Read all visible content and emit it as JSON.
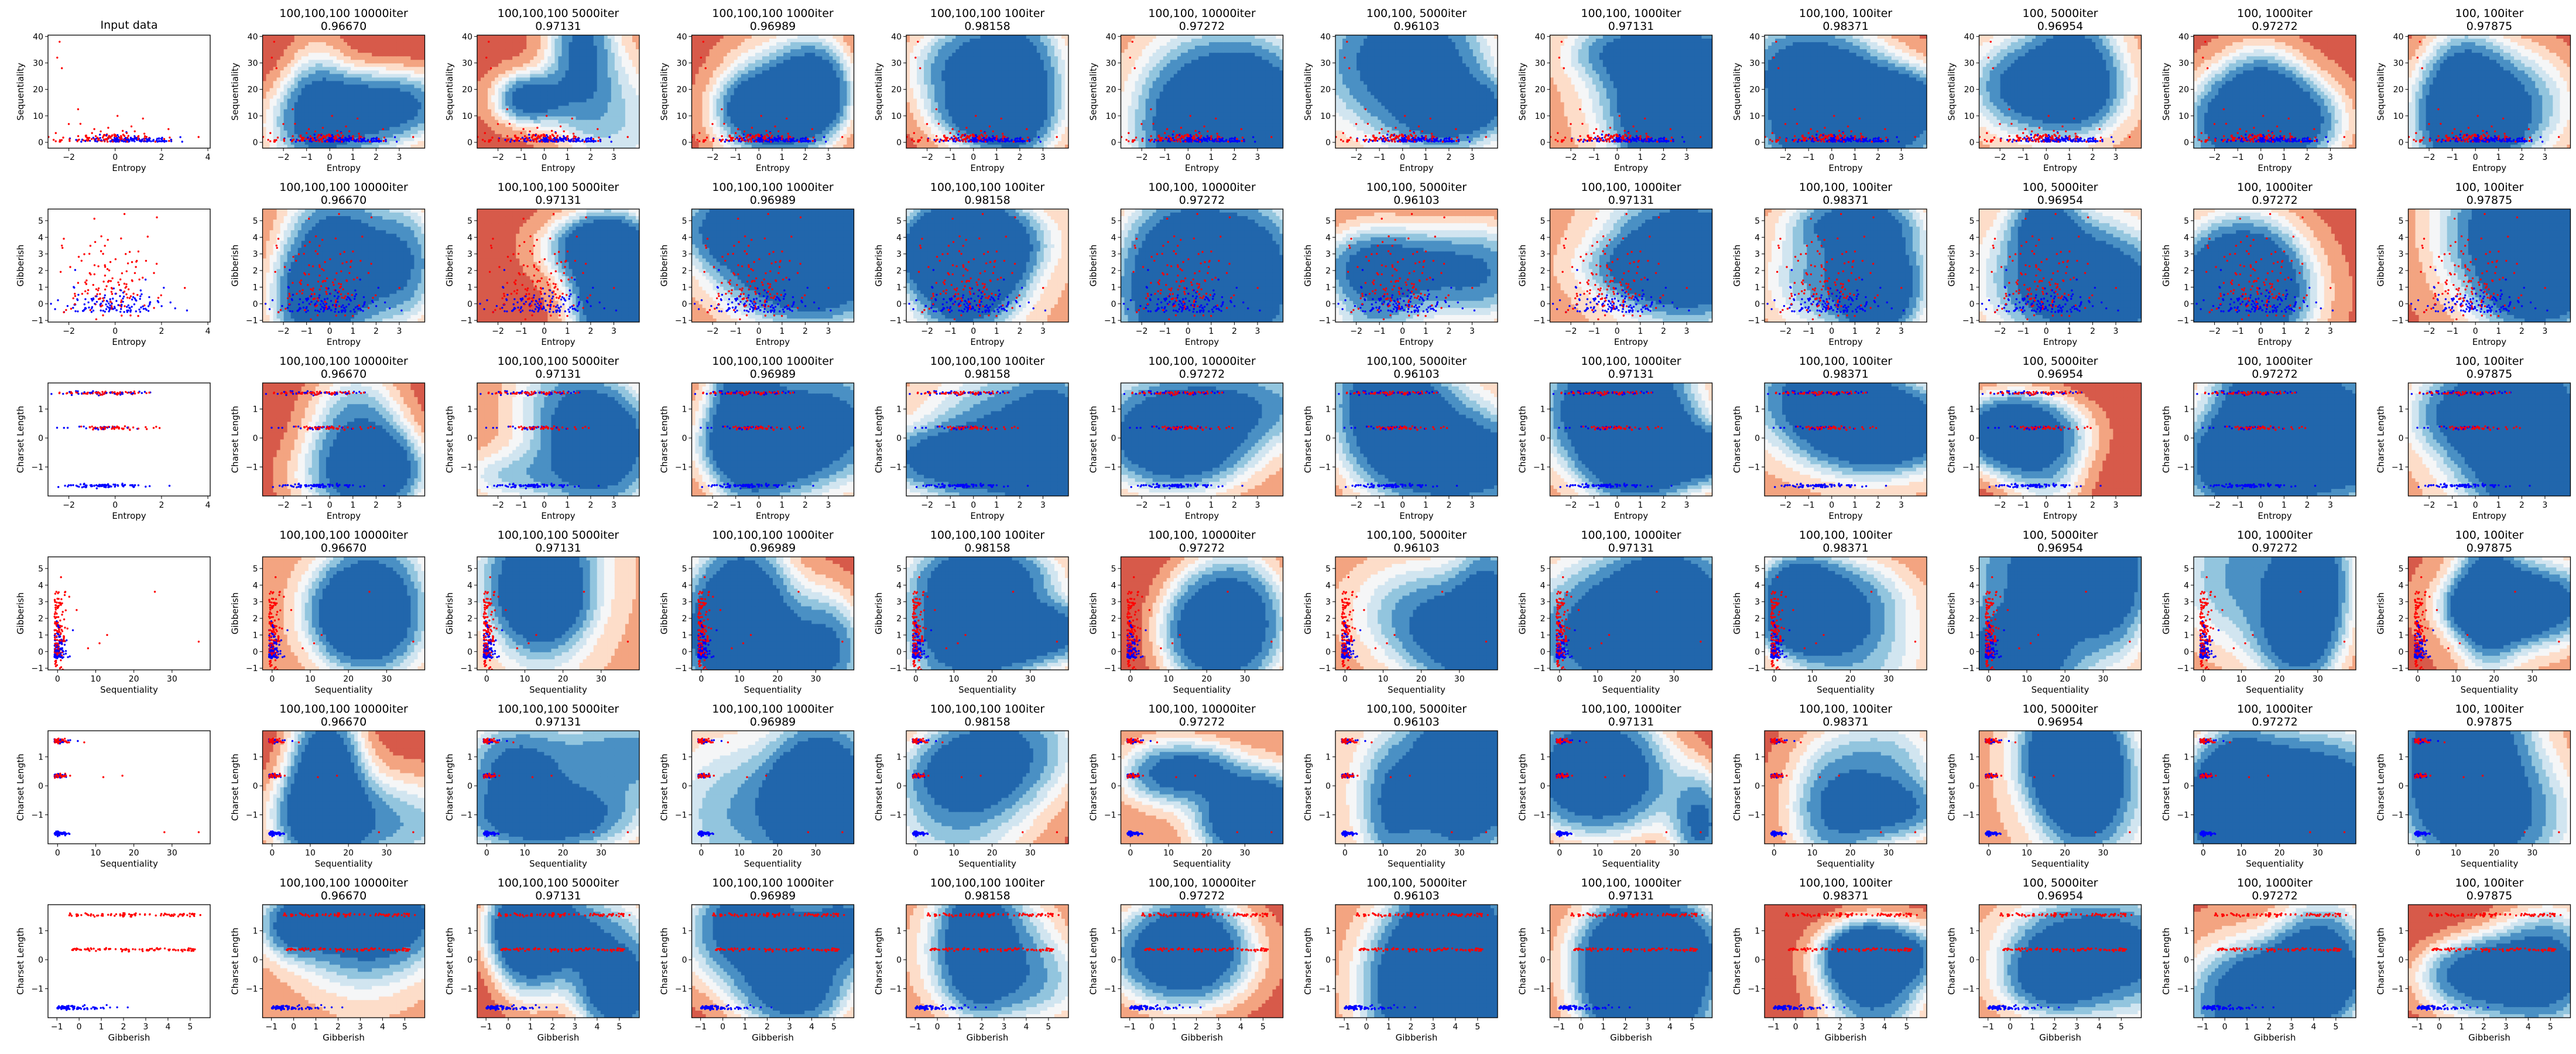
{
  "figure": {
    "rows": [
      {
        "xlabel": "Entropy",
        "ylabel": "Sequentiality"
      },
      {
        "xlabel": "Entropy",
        "ylabel": "Gibberish"
      },
      {
        "xlabel": "Entropy",
        "ylabel": "Charset Length"
      },
      {
        "xlabel": "Sequentiality",
        "ylabel": "Gibberish"
      },
      {
        "xlabel": "Sequentiality",
        "ylabel": "Charset Length"
      },
      {
        "xlabel": "Gibberish",
        "ylabel": "Charset Length"
      }
    ],
    "input_title": "Input data",
    "classifiers": [
      {
        "title": "100,100,100 10000iter",
        "score": "0.96670"
      },
      {
        "title": "100,100,100 5000iter",
        "score": "0.97131"
      },
      {
        "title": "100,100,100 1000iter",
        "score": "0.96989"
      },
      {
        "title": "100,100,100 100iter",
        "score": "0.98158"
      },
      {
        "title": "100,100, 10000iter",
        "score": "0.97272"
      },
      {
        "title": "100,100, 5000iter",
        "score": "0.96103"
      },
      {
        "title": "100,100, 1000iter",
        "score": "0.97131"
      },
      {
        "title": "100,100, 100iter",
        "score": "0.98371"
      },
      {
        "title": "100, 5000iter",
        "score": "0.96954"
      },
      {
        "title": "100, 1000iter",
        "score": "0.97272"
      },
      {
        "title": "100, 100iter",
        "score": "0.97875"
      }
    ]
  },
  "chart_data": {
    "type": "scatter",
    "grid": false,
    "colors": {
      "class_a": "#ff0000",
      "class_b": "#0000ff"
    },
    "colormap": [
      "#a8283a",
      "#d75a4a",
      "#f3a481",
      "#fdddc9",
      "#f5f6f7",
      "#d1e5f0",
      "#92c5de",
      "#4a90c4",
      "#2166ac"
    ],
    "panels": [
      {
        "row": 0,
        "x": "Entropy",
        "y": "Sequentiality",
        "xlim": [
          -2.9,
          4.1
        ],
        "ylim": [
          -2.2,
          40.5
        ],
        "input_xticks": [
          -2,
          0,
          2,
          4
        ],
        "xticks": [
          -2,
          -1,
          0,
          1,
          2,
          3
        ],
        "yticks": [
          0,
          10,
          20,
          30,
          40
        ],
        "input_points": [
          {
            "x": -2.5,
            "y": 32,
            "c": "a"
          },
          {
            "x": -2.4,
            "y": 38,
            "c": "a"
          },
          {
            "x": -2.3,
            "y": 28,
            "c": "a"
          },
          {
            "x": -1.6,
            "y": 12.5,
            "c": "a"
          },
          {
            "x": -1.5,
            "y": 7,
            "c": "a"
          },
          {
            "x": -0.9,
            "y": 5,
            "c": "a"
          },
          {
            "x": -0.3,
            "y": 5.5,
            "c": "a"
          },
          {
            "x": 0.1,
            "y": 10,
            "c": "a"
          },
          {
            "x": 0.7,
            "y": 6,
            "c": "a"
          },
          {
            "x": 1.2,
            "y": 9,
            "c": "a"
          },
          {
            "x": 2.3,
            "y": 5,
            "c": "a"
          },
          {
            "x": 3.6,
            "y": 2,
            "c": "a"
          },
          {
            "x": -1.0,
            "y": 3.5,
            "c": "a"
          },
          {
            "x": 0.5,
            "y": 3.5,
            "c": "a"
          }
        ]
      },
      {
        "row": 1,
        "x": "Entropy",
        "y": "Gibberish",
        "xlim": [
          -2.9,
          4.1
        ],
        "ylim": [
          -1.1,
          5.7
        ],
        "input_xticks": [
          -2,
          0,
          2,
          4
        ],
        "xticks": [
          -2,
          -1,
          0,
          1,
          2,
          3
        ],
        "yticks": [
          -1,
          0,
          1,
          2,
          3,
          4,
          5
        ],
        "input_points": [
          {
            "x": -2.3,
            "y": 3.5,
            "c": "a"
          },
          {
            "x": 1.8,
            "y": 5.2,
            "c": "a"
          },
          {
            "x": 0.4,
            "y": 5.4,
            "c": "a"
          }
        ]
      },
      {
        "row": 2,
        "x": "Entropy",
        "y": "Charset Length",
        "xlim": [
          -2.9,
          4.1
        ],
        "ylim": [
          -2.0,
          1.9
        ],
        "input_xticks": [
          -2,
          0,
          2,
          4
        ],
        "xticks": [
          -2,
          -1,
          0,
          1,
          2,
          3
        ],
        "yticks": [
          -1,
          0,
          1
        ],
        "input_points": []
      },
      {
        "row": 3,
        "x": "Sequentiality",
        "y": "Gibberish",
        "xlim": [
          -2.5,
          40
        ],
        "ylim": [
          -1.1,
          5.7
        ],
        "input_xticks": [
          0,
          10,
          20,
          30
        ],
        "xticks": [
          0,
          10,
          20,
          30
        ],
        "yticks": [
          -1,
          0,
          1,
          2,
          3,
          4,
          5
        ],
        "input_points": [
          {
            "x": 11,
            "y": 0.5,
            "c": "a"
          },
          {
            "x": 13,
            "y": 1.0,
            "c": "a"
          },
          {
            "x": 25.5,
            "y": 3.6,
            "c": "a"
          },
          {
            "x": 37,
            "y": 0.6,
            "c": "a"
          },
          {
            "x": 5,
            "y": 2.5,
            "c": "a"
          },
          {
            "x": 8,
            "y": 0.2,
            "c": "a"
          }
        ]
      },
      {
        "row": 4,
        "x": "Sequentiality",
        "y": "Charset Length",
        "xlim": [
          -2.5,
          40
        ],
        "ylim": [
          -2.0,
          1.9
        ],
        "input_xticks": [
          0,
          10,
          20,
          30
        ],
        "xticks": [
          0,
          10,
          20,
          30
        ],
        "yticks": [
          -1,
          0,
          1
        ],
        "input_points": [
          {
            "x": 17,
            "y": 0.35,
            "c": "a"
          },
          {
            "x": 12,
            "y": 0.3,
            "c": "a"
          },
          {
            "x": 28,
            "y": -1.6,
            "c": "a"
          },
          {
            "x": 37,
            "y": -1.6,
            "c": "a"
          },
          {
            "x": 7,
            "y": 1.5,
            "c": "a"
          }
        ]
      },
      {
        "row": 5,
        "x": "Gibberish",
        "y": "Charset Length",
        "xlim": [
          -1.4,
          5.9
        ],
        "ylim": [
          -2.0,
          1.9
        ],
        "input_xticks": [
          -1,
          0,
          1,
          2,
          3,
          4,
          5
        ],
        "xticks": [
          -1,
          0,
          1,
          2,
          3,
          4,
          5
        ],
        "yticks": [
          -1,
          0,
          1
        ],
        "input_points": []
      }
    ]
  }
}
